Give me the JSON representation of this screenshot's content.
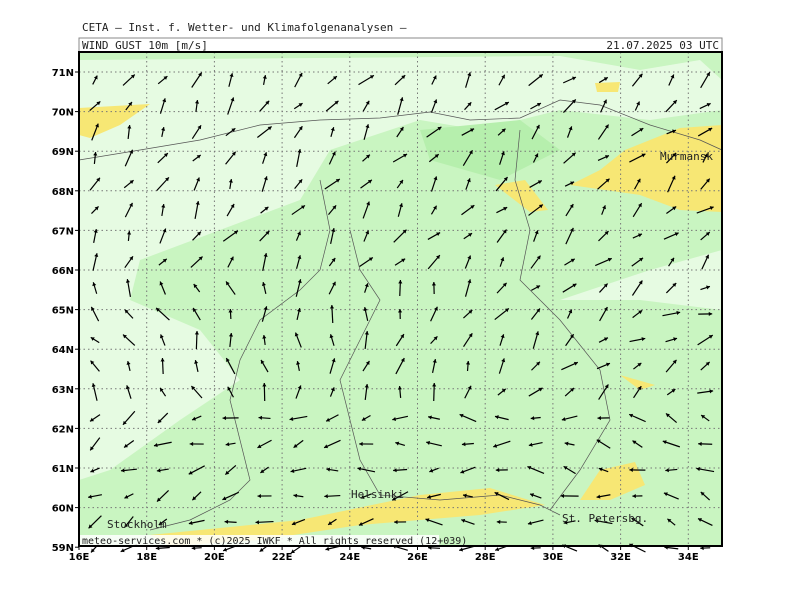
{
  "header": {
    "source": "CETA — Inst. f. Wetter- und Klimafolgenanalysen —",
    "field": "WIND_GUST_10m [m/s]",
    "datetime": "21.07.2025 03 UTC"
  },
  "axes": {
    "lat_labels": [
      "71N",
      "70N",
      "69N",
      "68N",
      "67N",
      "66N",
      "65N",
      "64N",
      "63N",
      "62N",
      "61N",
      "60N",
      "59N"
    ],
    "lon_labels": [
      "16E",
      "18E",
      "20E",
      "22E",
      "24E",
      "26E",
      "28E",
      "30E",
      "32E",
      "34E"
    ]
  },
  "places": {
    "murmansk": "Murmansk",
    "helsinki": "Helsinki",
    "stockholm": "Stockholm",
    "st_petersburg": "St. Petersbg."
  },
  "footer": "meteo-services.com * (c)2025 IWKF * All rights reserved (12+039)"
}
